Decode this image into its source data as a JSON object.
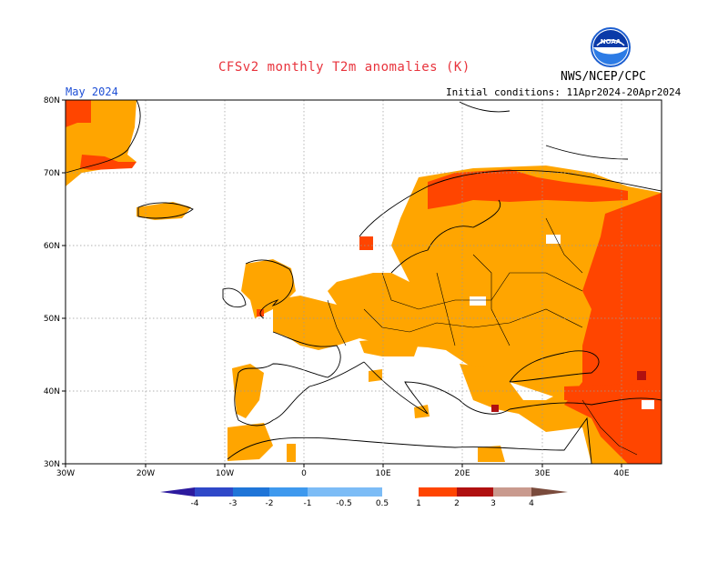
{
  "title": "CFSv2 monthly T2m anomalies (K)",
  "subtitle": "May 2024",
  "initial_conditions": "Initial conditions: 11Apr2024-20Apr2024",
  "agency": "NWS/NCEP/CPC",
  "logo_text": "NOAA",
  "map": {
    "lon_range": [
      -30,
      45
    ],
    "lat_range": [
      30,
      80
    ],
    "lon_ticks": [
      "30W",
      "20W",
      "10W",
      "0",
      "10E",
      "20E",
      "30E",
      "40E"
    ],
    "lat_ticks": [
      "30N",
      "40N",
      "50N",
      "60N",
      "70N",
      "80N"
    ],
    "grid": true,
    "region": "Europe"
  },
  "colorbar": {
    "labels": [
      "-4",
      "-3",
      "-2",
      "-1",
      "-0.5",
      "0.5",
      "1",
      "2",
      "3",
      "4"
    ],
    "colors": [
      "#2c1a9e",
      "#2f48c8",
      "#1f75d8",
      "#3e99ee",
      "#7cbcf6",
      "#ffffff",
      "#ffa500",
      "#ff4500",
      "#b01010",
      "#c99a8e",
      "#7a4b3c"
    ]
  }
}
